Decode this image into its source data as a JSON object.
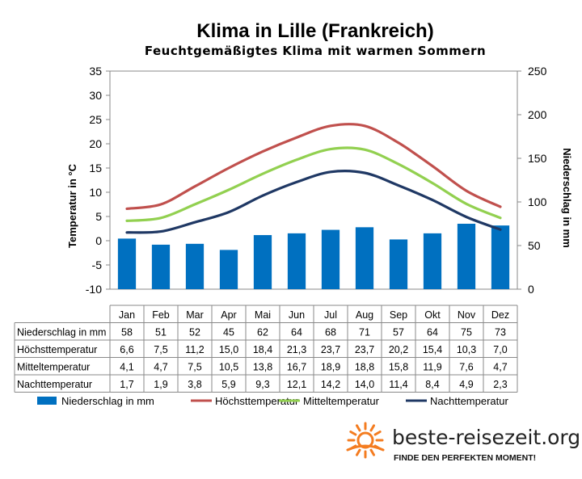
{
  "chart_data": {
    "type": "bar",
    "title": "Klima in Lille (Frankreich)",
    "subtitle": "Feuchtgemäßigtes Klima mit warmen Sommern",
    "categories": [
      "Jan",
      "Feb",
      "Mar",
      "Apr",
      "Mai",
      "Jun",
      "Jul",
      "Aug",
      "Sep",
      "Okt",
      "Nov",
      "Dez"
    ],
    "ylabel": "Temperatur in °C",
    "y2label": "Niederschlag in mm",
    "ylim": [
      -10,
      35
    ],
    "y2lim": [
      0,
      250
    ],
    "yticks": [
      "35",
      "30",
      "25",
      "20",
      "15",
      "10",
      "5",
      "0",
      "-5",
      "-10"
    ],
    "y2ticks": [
      "250",
      "200",
      "150",
      "100",
      "50",
      "0"
    ],
    "grid": false,
    "legend_position": "bottom",
    "series": [
      {
        "name": "Niederschlag in mm",
        "type": "bar",
        "axis": "right",
        "color": "#0070c0",
        "values": [
          58,
          51,
          52,
          45,
          62,
          64,
          68,
          71,
          57,
          64,
          75,
          73
        ],
        "labels": [
          "58",
          "51",
          "52",
          "45",
          "62",
          "64",
          "68",
          "71",
          "57",
          "64",
          "75",
          "73"
        ]
      },
      {
        "name": "Höchsttemperatur",
        "type": "line",
        "axis": "left",
        "color": "#c0504d",
        "values": [
          6.6,
          7.5,
          11.2,
          15.0,
          18.4,
          21.3,
          23.7,
          23.7,
          20.2,
          15.4,
          10.3,
          7.0
        ],
        "labels": [
          "6,6",
          "7,5",
          "11,2",
          "15,0",
          "18,4",
          "21,3",
          "23,7",
          "23,7",
          "20,2",
          "15,4",
          "10,3",
          "7,0"
        ]
      },
      {
        "name": "Mitteltemperatur",
        "type": "line",
        "axis": "left",
        "color": "#92d050",
        "values": [
          4.1,
          4.7,
          7.5,
          10.5,
          13.8,
          16.7,
          18.9,
          18.8,
          15.8,
          11.9,
          7.6,
          4.7
        ],
        "labels": [
          "4,1",
          "4,7",
          "7,5",
          "10,5",
          "13,8",
          "16,7",
          "18,9",
          "18,8",
          "15,8",
          "11,9",
          "7,6",
          "4,7"
        ]
      },
      {
        "name": "Nachttemperatur",
        "type": "line",
        "axis": "left",
        "color": "#1f3864",
        "values": [
          1.7,
          1.9,
          3.8,
          5.9,
          9.3,
          12.1,
          14.2,
          14.0,
          11.4,
          8.4,
          4.9,
          2.3
        ],
        "labels": [
          "1,7",
          "1,9",
          "3,8",
          "5,9",
          "9,3",
          "12,1",
          "14,2",
          "14,0",
          "11,4",
          "8,4",
          "4,9",
          "2,3"
        ]
      }
    ]
  },
  "branding": {
    "name": "beste-reisezeit.org",
    "tagline": "FINDE DEN PERFEKTEN MOMENT!",
    "logo_icon": "sun-icon",
    "logo_color": "#f47c20"
  }
}
